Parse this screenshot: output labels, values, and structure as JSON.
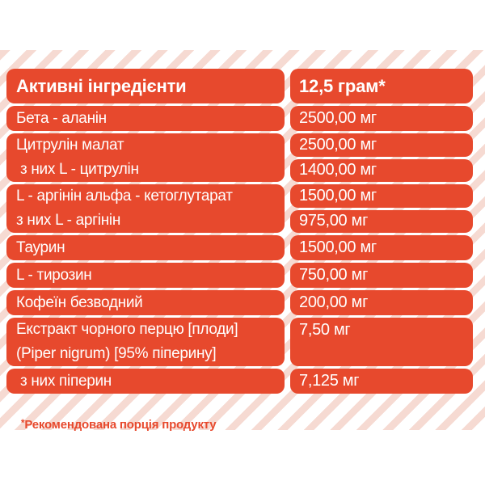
{
  "colors": {
    "pill_red": "#E7492D",
    "stripe_pink": "#F6DAD2",
    "text_white": "#FFFFFF"
  },
  "table": {
    "header": {
      "ingredients": "Активні інгредієнти",
      "serving": "12,5 грам*"
    },
    "rows": [
      {
        "lines": [
          "Бета - аланін"
        ],
        "values": [
          "2500,00 мг"
        ]
      },
      {
        "lines": [
          "Цитрулін малат",
          " з них L - цитрулін"
        ],
        "values": [
          "2500,00 мг",
          "1400,00 мг"
        ]
      },
      {
        "lines": [
          "L - аргінін альфа - кетоглутарат",
          "з них L - аргінін"
        ],
        "values": [
          "1500,00 мг",
          "975,00 мг"
        ]
      },
      {
        "lines": [
          "Таурин"
        ],
        "values": [
          "1500,00 мг"
        ]
      },
      {
        "lines": [
          "L - тирозин"
        ],
        "values": [
          "750,00 мг"
        ]
      },
      {
        "lines": [
          "Кофеїн безводний"
        ],
        "values": [
          "200,00 мг"
        ]
      },
      {
        "lines": [
          "Екстракт чорного перцю [плоди]",
          "(Piper nigrum) [95% піперину]"
        ],
        "values": [
          "7,50 мг"
        ],
        "tall_value": true
      },
      {
        "lines": [
          " з них піперин"
        ],
        "values": [
          "7,125 мг"
        ]
      }
    ]
  },
  "footnote": {
    "star": "*",
    "text": "Рекомендована порція продукту"
  }
}
